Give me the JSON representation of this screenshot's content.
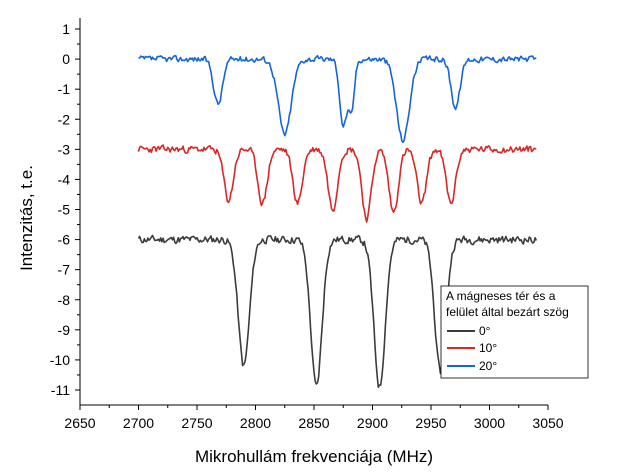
{
  "chart_data": {
    "type": "line",
    "xlabel": "Mikrohullám frekvenciája (MHz)",
    "ylabel": "Intenzitás, t.e.",
    "xlim": [
      2650,
      3050
    ],
    "ylim": [
      -11.5,
      1
    ],
    "x_ticks": [
      "2650",
      "2700",
      "2750",
      "2800",
      "2850",
      "2900",
      "2950",
      "3000",
      "3050"
    ],
    "y_ticks": [
      "1",
      "0",
      "-1",
      "-2",
      "-3",
      "-4",
      "-5",
      "-6",
      "-7",
      "-8",
      "-9",
      "-10",
      "-11"
    ],
    "grid": false,
    "legend": {
      "title_line1": "A mágneses tér és a",
      "title_line2": "felület által bezárt szög",
      "placement": "lower-right",
      "entries": [
        "0°",
        "10°",
        "20°"
      ]
    },
    "x_range": [
      2700,
      3040
    ],
    "series": [
      {
        "name": "0°",
        "color": "#3c3c3c",
        "baseline": -6.0,
        "noise": 0.13,
        "seed": 11,
        "dips": [
          {
            "x": 2790,
            "depth": 4.2,
            "width": 4.8
          },
          {
            "x": 2852,
            "depth": 4.9,
            "width": 4.8
          },
          {
            "x": 2906,
            "depth": 4.9,
            "width": 4.8
          },
          {
            "x": 2958,
            "depth": 4.4,
            "width": 4.8
          }
        ]
      },
      {
        "name": "10°",
        "color": "#d62828",
        "baseline": -3.0,
        "noise": 0.12,
        "seed": 23,
        "dips": [
          {
            "x": 2777,
            "depth": 1.7,
            "width": 4.0
          },
          {
            "x": 2806,
            "depth": 1.8,
            "width": 4.0
          },
          {
            "x": 2836,
            "depth": 1.8,
            "width": 4.0
          },
          {
            "x": 2866,
            "depth": 2.0,
            "width": 4.0
          },
          {
            "x": 2895,
            "depth": 2.3,
            "width": 4.0
          },
          {
            "x": 2918,
            "depth": 2.1,
            "width": 4.0
          },
          {
            "x": 2942,
            "depth": 1.8,
            "width": 4.0
          },
          {
            "x": 2967,
            "depth": 1.8,
            "width": 4.0
          }
        ]
      },
      {
        "name": "20°",
        "color": "#1565d8",
        "baseline": 0.0,
        "noise": 0.1,
        "seed": 37,
        "dips": [
          {
            "x": 2768,
            "depth": 1.5,
            "width": 3.8
          },
          {
            "x": 2825,
            "depth": 2.5,
            "width": 5.5
          },
          {
            "x": 2875,
            "depth": 2.2,
            "width": 3.0
          },
          {
            "x": 2882,
            "depth": 1.7,
            "width": 2.5
          },
          {
            "x": 2926,
            "depth": 2.7,
            "width": 5.5
          },
          {
            "x": 2971,
            "depth": 1.6,
            "width": 3.8
          }
        ]
      }
    ]
  }
}
